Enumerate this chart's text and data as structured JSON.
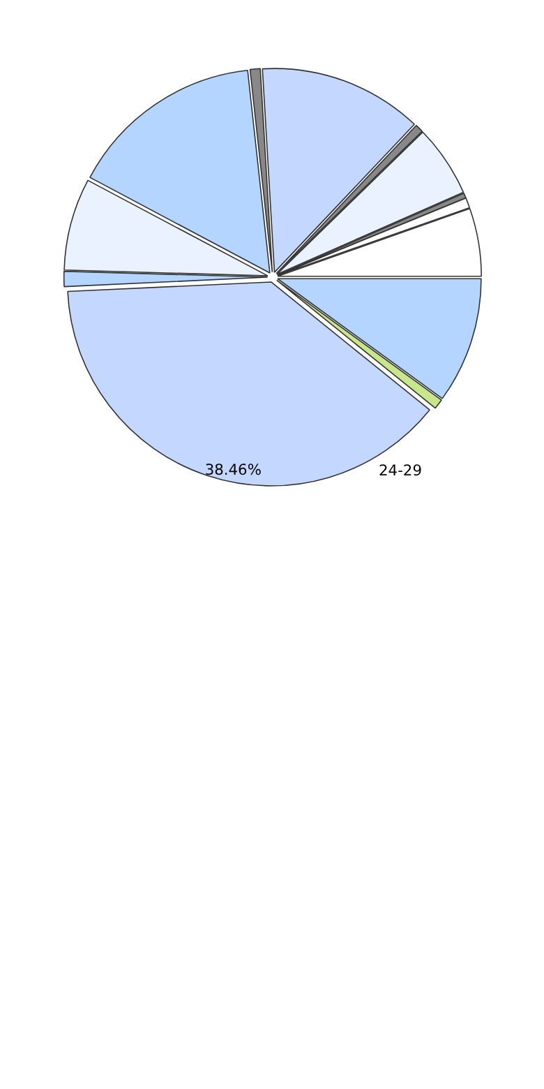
{
  "chart_data": {
    "type": "pie",
    "categories": [
      null,
      null,
      "24-29",
      null,
      null,
      null,
      null,
      null,
      null,
      null,
      null,
      null,
      null
    ],
    "values": [
      10.0,
      0.8,
      38.46,
      1.2,
      7.3,
      15.5,
      0.8,
      13.0,
      0.65,
      5.7,
      0.4,
      0.8,
      5.39
    ],
    "colors": [
      "#b3d5ff",
      "#c8e68c",
      "#c4d8ff",
      "#b3d5ff",
      "#eaf2ff",
      "#b3d5ff",
      "#888888",
      "#c4d8ff",
      "#888888",
      "#eaf2ff",
      "#888888",
      "#ffffff",
      "#ffffff"
    ],
    "value_labels": [
      null,
      null,
      "38.46%",
      null,
      null,
      null,
      null,
      null,
      null,
      null,
      null,
      null,
      null
    ]
  }
}
